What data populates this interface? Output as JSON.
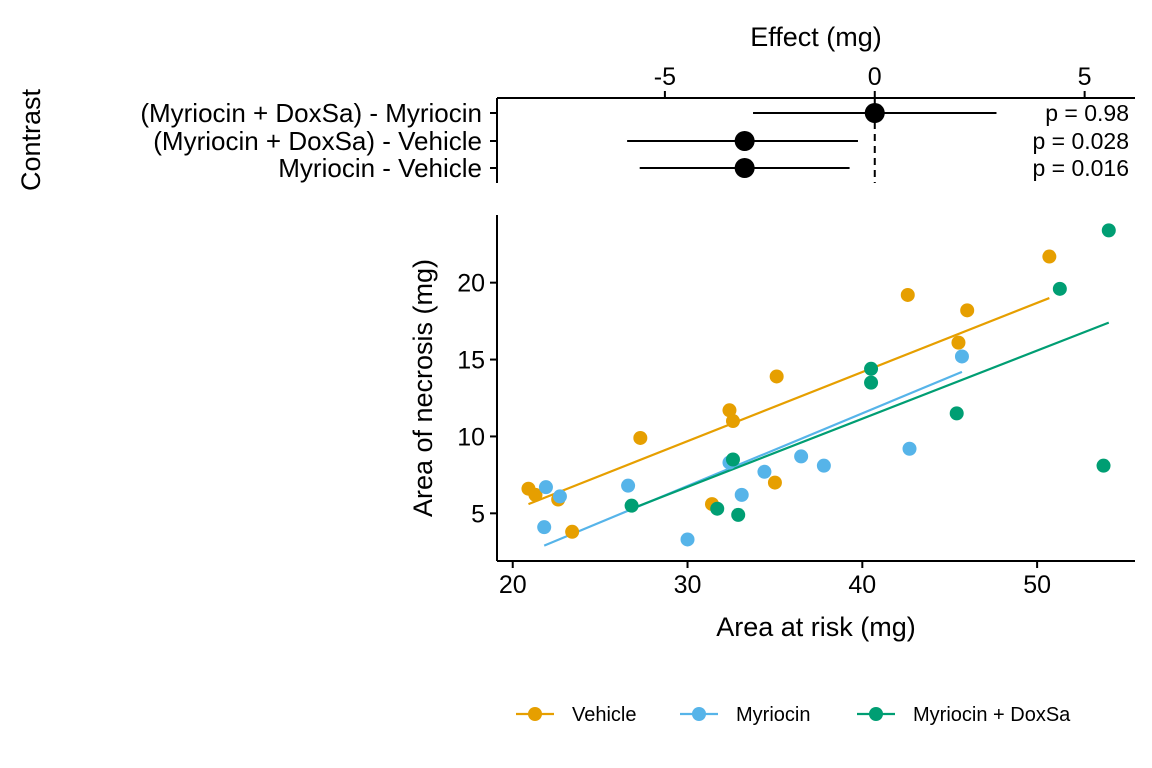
{
  "colors": {
    "vehicle": "#E69F00",
    "myriocin": "#56B4E9",
    "doxsa": "#009E73",
    "axis": "#000000"
  },
  "chart_data": [
    {
      "type": "forest",
      "xlabel": "Effect (mg)",
      "ylabel": "Contrast",
      "xlim": [
        -9,
        6.2
      ],
      "x_ticks": [
        -5,
        0,
        5
      ],
      "x_tick_labels": [
        "-5",
        "0",
        "5"
      ],
      "reference_line": 0,
      "rows": [
        {
          "label": "(Myriocin + DoxSa) - Myriocin",
          "estimate": 0.0,
          "lower": -2.9,
          "upper": 2.9,
          "p_label": "p =  0.98"
        },
        {
          "label": "(Myriocin + DoxSa) - Vehicle",
          "estimate": -3.1,
          "lower": -5.9,
          "upper": -0.4,
          "p_label": "p =  0.028"
        },
        {
          "label": "Myriocin - Vehicle",
          "estimate": -3.1,
          "lower": -5.6,
          "upper": -0.6,
          "p_label": "p =  0.016"
        }
      ]
    },
    {
      "type": "scatter",
      "xlabel": "Area at risk (mg)",
      "ylabel": "Area of necrosis (mg)",
      "xlim": [
        19.1,
        55.6
      ],
      "ylim": [
        1.9,
        24.4
      ],
      "x_ticks": [
        20,
        30,
        40,
        50
      ],
      "y_ticks": [
        5,
        10,
        15,
        20
      ],
      "grid": false,
      "legend_position": "bottom",
      "series": [
        {
          "name": "Vehicle",
          "color_key": "vehicle",
          "points": [
            [
              20.9,
              6.6
            ],
            [
              21.3,
              6.2
            ],
            [
              22.6,
              5.9
            ],
            [
              23.4,
              3.8
            ],
            [
              27.3,
              9.9
            ],
            [
              31.4,
              5.6
            ],
            [
              32.4,
              11.7
            ],
            [
              32.6,
              11.0
            ],
            [
              35.0,
              7.0
            ],
            [
              35.1,
              13.9
            ],
            [
              42.6,
              19.2
            ],
            [
              45.5,
              16.1
            ],
            [
              46.0,
              18.2
            ],
            [
              50.7,
              21.7
            ]
          ],
          "fit": [
            [
              20.9,
              5.6
            ],
            [
              50.7,
              19.0
            ]
          ]
        },
        {
          "name": "Myriocin",
          "color_key": "myriocin",
          "points": [
            [
              21.8,
              4.1
            ],
            [
              21.9,
              6.7
            ],
            [
              22.7,
              6.1
            ],
            [
              26.6,
              6.8
            ],
            [
              30.0,
              3.3
            ],
            [
              32.4,
              8.3
            ],
            [
              33.1,
              6.2
            ],
            [
              34.4,
              7.7
            ],
            [
              36.5,
              8.7
            ],
            [
              37.8,
              8.1
            ],
            [
              42.7,
              9.2
            ],
            [
              45.7,
              15.2
            ]
          ],
          "fit": [
            [
              21.8,
              2.9
            ],
            [
              45.7,
              14.2
            ]
          ]
        },
        {
          "name": "Myriocin + DoxSa",
          "color_key": "doxsa",
          "points": [
            [
              26.8,
              5.5
            ],
            [
              31.7,
              5.3
            ],
            [
              32.6,
              8.5
            ],
            [
              32.9,
              4.9
            ],
            [
              40.5,
              14.4
            ],
            [
              40.5,
              13.5
            ],
            [
              45.4,
              11.5
            ],
            [
              51.3,
              19.6
            ],
            [
              53.8,
              8.1
            ],
            [
              54.1,
              23.4
            ]
          ],
          "fit": [
            [
              26.8,
              5.3
            ],
            [
              54.1,
              17.4
            ]
          ]
        }
      ]
    }
  ]
}
